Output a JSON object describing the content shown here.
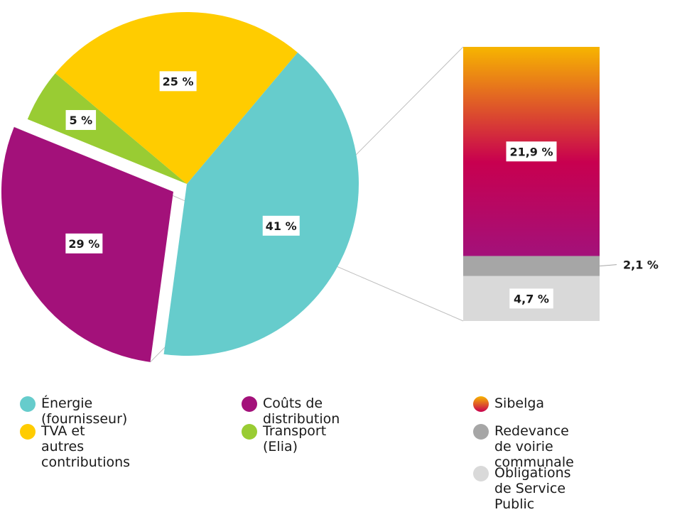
{
  "chart_data": [
    {
      "type": "pie",
      "slices": [
        {
          "label": "Énergie (fournisseur)",
          "value": 41,
          "display": "41 %",
          "color": "#66cccc"
        },
        {
          "label": "Coûts de distribution",
          "value": 29,
          "display": "29 %",
          "color": "#a3117a",
          "exploded": true
        },
        {
          "label": "Transport (Elia)",
          "value": 5,
          "display": "5 %",
          "color": "#99cc33"
        },
        {
          "label": "TVA et autres contributions",
          "value": 25,
          "display": "25 %",
          "color": "#ffcc00"
        }
      ]
    },
    {
      "type": "bar",
      "stacked": true,
      "breakdown_of": "Coûts de distribution",
      "segments": [
        {
          "label": "Sibelga",
          "value": 21.9,
          "display": "21,9 %",
          "gradient": [
            "#f7b500",
            "#c8004f",
            "#a3117a"
          ]
        },
        {
          "label": "Redevance de voirie communale",
          "value": 2.1,
          "display": "2,1 %",
          "color": "#a6a6a6"
        },
        {
          "label": "Obligations de Service Public",
          "value": 4.7,
          "display": "4,7 %",
          "color": "#d9d9d9"
        }
      ]
    }
  ],
  "legend": [
    {
      "label": "Énergie (fournisseur)",
      "color": "#66cccc"
    },
    {
      "label": "TVA et autres\ncontributions",
      "color": "#ffcc00"
    },
    {
      "label": "Coûts de distribution",
      "color": "#a3117a"
    },
    {
      "label": "Transport (Elia)",
      "color": "#99cc33"
    },
    {
      "label": "Sibelga",
      "gradient": [
        "#f7b500",
        "#c8004f"
      ]
    },
    {
      "label": "Redevance de voirie\ncommunale",
      "color": "#a6a6a6"
    },
    {
      "label": "Obligations de Service\nPublic",
      "color": "#d9d9d9"
    }
  ]
}
